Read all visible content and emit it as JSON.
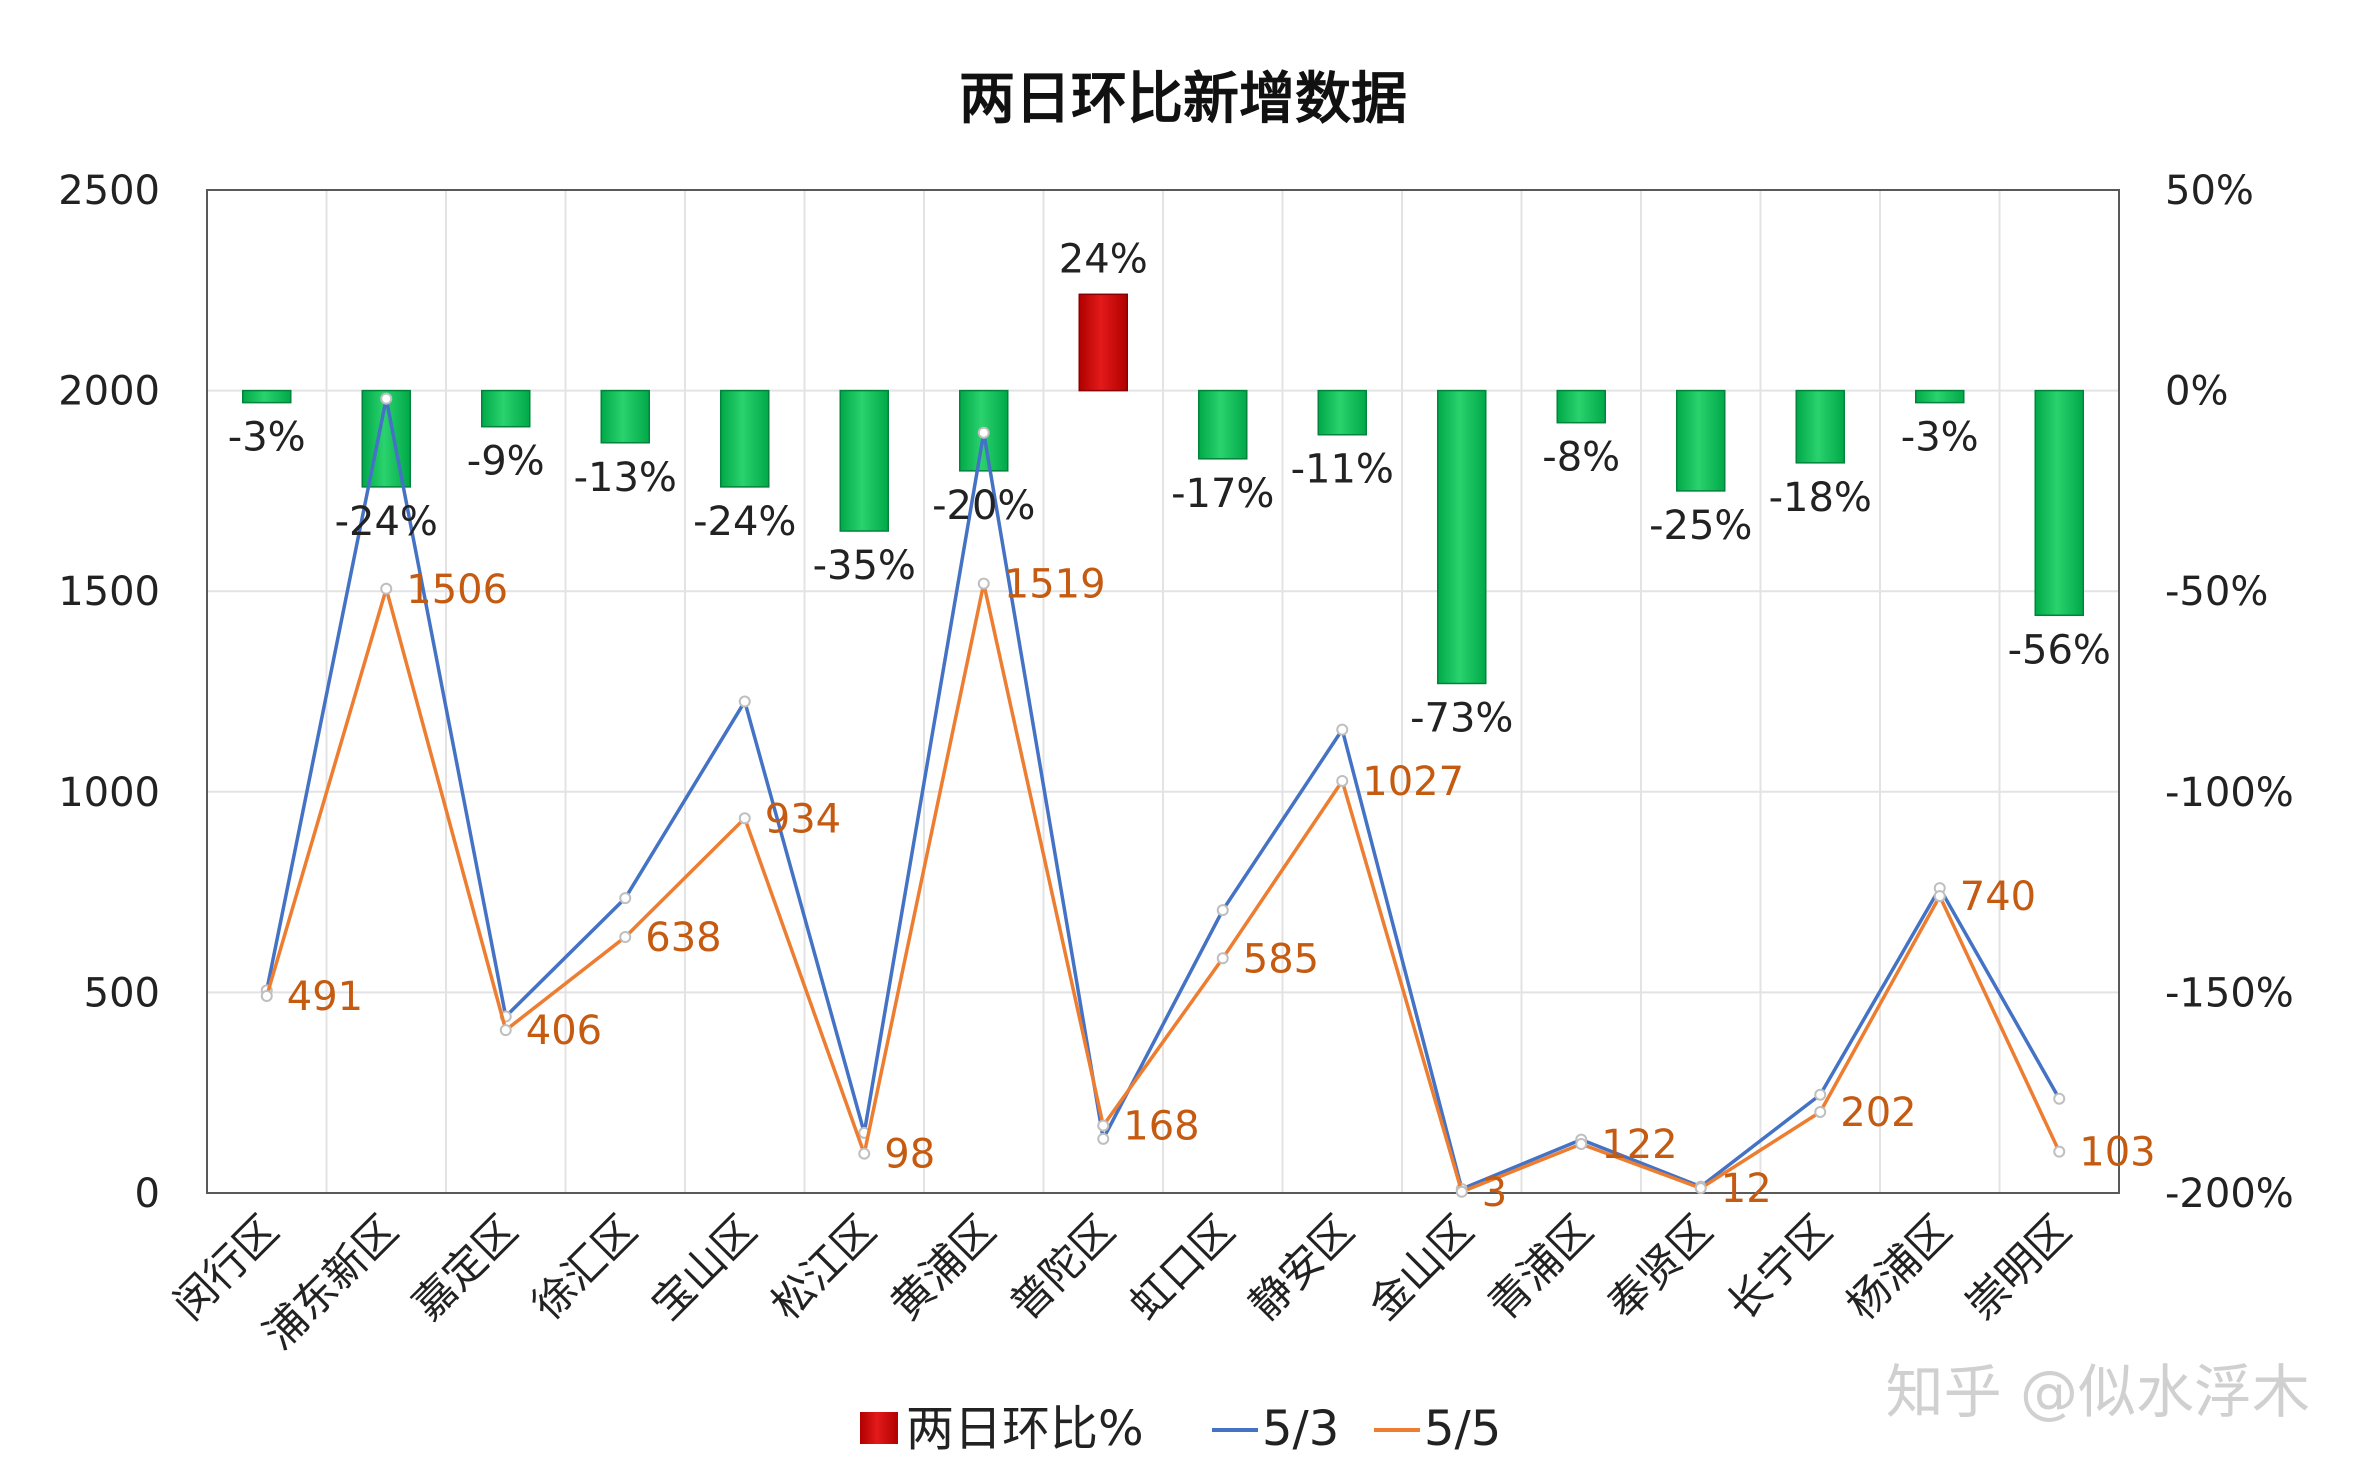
{
  "colors": {
    "bar_negative": "#00b050",
    "bar_positive": "#c00000",
    "line_53": "#4472c4",
    "line_55": "#ed7d31",
    "value_label": "#c55a11"
  },
  "watermark": "知乎 @似水浮木",
  "chart_data": {
    "type": "bar",
    "title": "两日环比新增数据",
    "categories": [
      "闵行区",
      "浦东新区",
      "嘉定区",
      "徐汇区",
      "宝山区",
      "松江区",
      "黄浦区",
      "普陀区",
      "虹口区",
      "静安区",
      "金山区",
      "青浦区",
      "奉贤区",
      "长宁区",
      "杨浦区",
      "崇明区"
    ],
    "y_left": {
      "range": [
        0,
        2500
      ],
      "ticks": [
        "0",
        "500",
        "1000",
        "1500",
        "2000",
        "2500"
      ]
    },
    "y_right": {
      "range": [
        -200,
        50
      ],
      "ticks": [
        "-200%",
        "-150%",
        "-100%",
        "-50%",
        "0%",
        "50%"
      ]
    },
    "grid": true,
    "legend_position": "bottom",
    "series": [
      {
        "name": "两日环比%",
        "type": "bar",
        "axis": "right",
        "values": [
          -3,
          -24,
          -9,
          -13,
          -24,
          -35,
          -20,
          24,
          -17,
          -11,
          -73,
          -8,
          -25,
          -18,
          -3,
          -56
        ],
        "labels": [
          "-3%",
          "-24%",
          "-9%",
          "-13%",
          "-24%",
          "-35%",
          "-20%",
          "24%",
          "-17%",
          "-11%",
          "-73%",
          "-8%",
          "-25%",
          "-18%",
          "-3%",
          "-56%"
        ]
      },
      {
        "name": "5/3",
        "type": "line",
        "axis": "left",
        "values": [
          505,
          1980,
          440,
          735,
          1225,
          150,
          1895,
          135,
          705,
          1155,
          10,
          133,
          16,
          245,
          760,
          235
        ]
      },
      {
        "name": "5/5",
        "type": "line",
        "axis": "left",
        "values": [
          491,
          1506,
          406,
          638,
          934,
          98,
          1519,
          168,
          585,
          1027,
          3,
          122,
          12,
          202,
          740,
          103
        ],
        "labels": [
          "491",
          "1506",
          "406",
          "638",
          "934",
          "98",
          "1519",
          "168",
          "585",
          "1027",
          "3",
          "122",
          "12",
          "202",
          "740",
          "103"
        ]
      }
    ]
  }
}
